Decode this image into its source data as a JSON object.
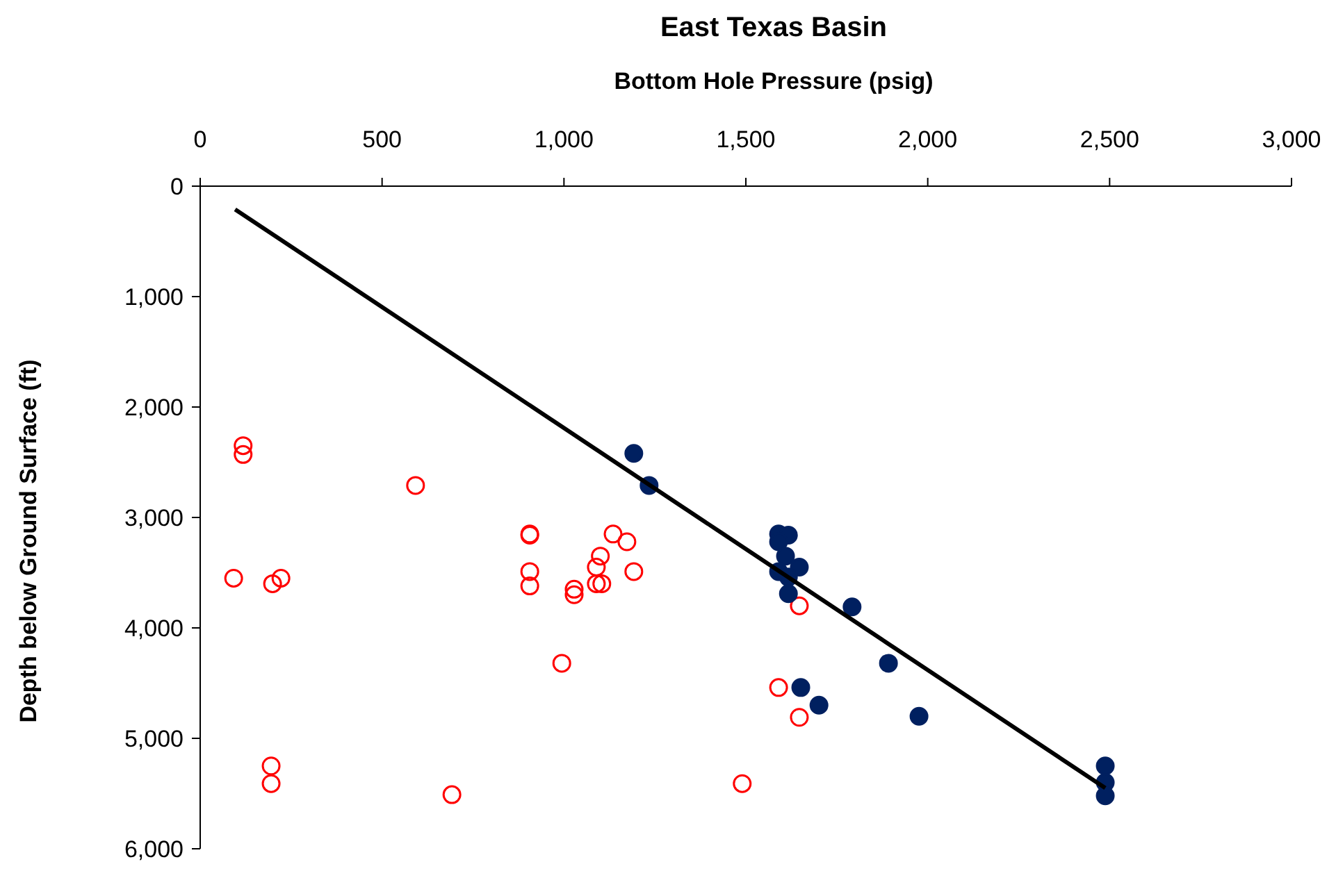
{
  "chart_data": {
    "type": "scatter",
    "title": "East Texas Basin",
    "xlabel": "Bottom Hole Pressure (psig)",
    "ylabel": "Depth below Ground Surface (ft)",
    "xlim": [
      0,
      3000
    ],
    "xticks": [
      0,
      500,
      {
        "value": 1000,
        "label": "1,000"
      },
      {
        "value": 1500,
        "label": "1,500"
      },
      {
        "value": 2000,
        "label": "2,000"
      },
      {
        "value": 2500,
        "label": "2,500"
      },
      {
        "value": 3000,
        "label": "3,000"
      }
    ],
    "ylim": [
      6000,
      0
    ],
    "yticks": [
      0,
      {
        "value": 1000,
        "label": "1,000"
      },
      {
        "value": 2000,
        "label": "2,000"
      },
      {
        "value": 3000,
        "label": "3,000"
      },
      {
        "value": 4000,
        "label": "4,000"
      },
      {
        "value": 5000,
        "label": "5,000"
      },
      {
        "value": 6000,
        "label": "6,000"
      }
    ],
    "grid": false,
    "series": [
      {
        "color": "#ff0000",
        "marker": "circle",
        "x": [
          118,
          118,
          92,
          199,
          222,
          592,
          906,
          906,
          906,
          906,
          1135,
          1173,
          1100,
          1089,
          1089,
          1104,
          1192,
          1028,
          1028,
          994,
          195,
          195,
          692,
          1490,
          1590,
          1647,
          1647
        ],
        "values": [
          2350,
          2430,
          3550,
          3600,
          3550,
          2710,
          3150,
          3160,
          3490,
          3620,
          3150,
          3220,
          3350,
          3450,
          3600,
          3600,
          3490,
          3650,
          3700,
          4320,
          5250,
          5410,
          5510,
          5410,
          4540,
          4810,
          3800
        ]
      },
      {
        "color": "#002060",
        "marker": "circle",
        "x": [
          1192,
          1234,
          1590,
          1617,
          1590,
          1609,
          1590,
          1647,
          1617,
          1617,
          1792,
          1892,
          1651,
          1701,
          1976,
          2488,
          2488,
          2488
        ],
        "values": [
          2420,
          2710,
          3150,
          3160,
          3220,
          3350,
          3490,
          3450,
          3540,
          3690,
          3810,
          4320,
          4540,
          4700,
          4800,
          5250,
          5400,
          5520
        ]
      },
      {
        "type": "line",
        "color": "#000000",
        "line_style": "solid",
        "marker": "none",
        "x": [
          96,
          2488
        ],
        "values": [
          210,
          5450
        ]
      }
    ]
  }
}
